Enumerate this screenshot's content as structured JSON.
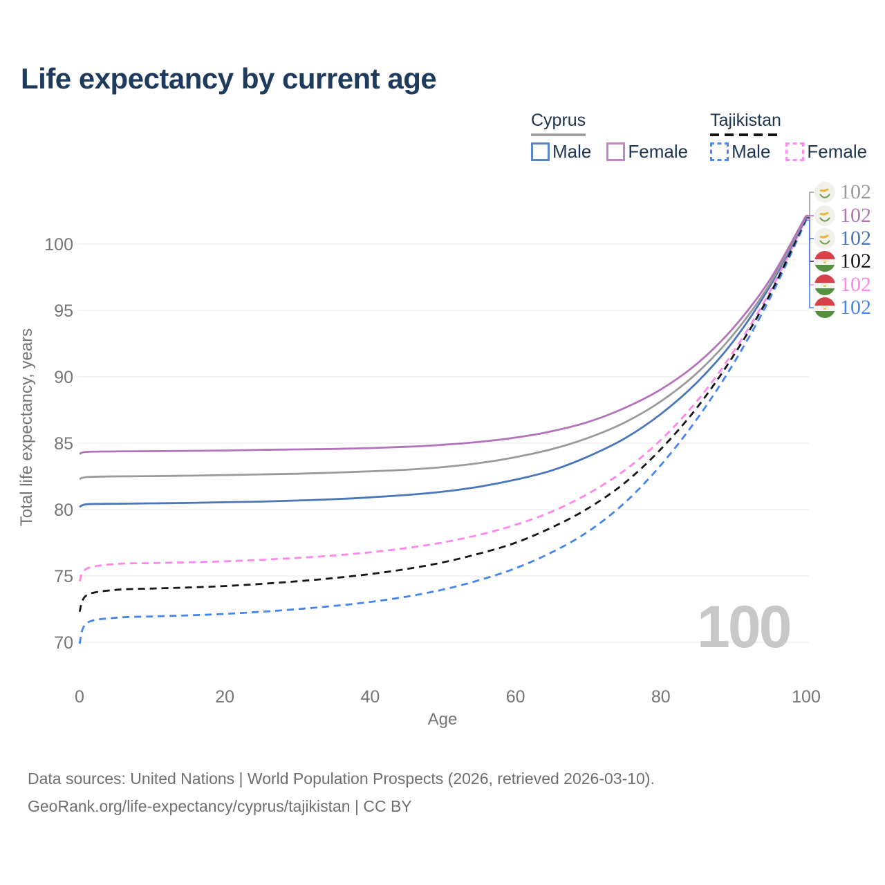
{
  "title": "Life expectancy by current age",
  "legend": {
    "groups": [
      {
        "label": "Cyprus",
        "line_style": "solid",
        "items": [
          {
            "label": "Male",
            "color": "#4a76ba"
          },
          {
            "label": "Female",
            "color": "#b273b8"
          }
        ]
      },
      {
        "label": "Tajikistan",
        "line_style": "dashed",
        "items": [
          {
            "label": "Male",
            "color": "#4485f2"
          },
          {
            "label": "Female",
            "color": "#ff86ec"
          }
        ]
      }
    ]
  },
  "chart_data": {
    "type": "line",
    "title": "Life expectancy by current age",
    "xlabel": "Age",
    "ylabel": "Total life expectancy, years",
    "x_ticks": [
      0,
      20,
      40,
      60,
      80,
      100
    ],
    "y_ticks": [
      70,
      75,
      80,
      85,
      90,
      95,
      100
    ],
    "xlim": [
      0,
      100
    ],
    "ylim": [
      67,
      104.3
    ],
    "grid": "horizontal",
    "legend_position": "top-right",
    "x": [
      0,
      1,
      5,
      10,
      15,
      20,
      25,
      30,
      35,
      40,
      45,
      50,
      55,
      60,
      65,
      70,
      75,
      80,
      85,
      90,
      95,
      100
    ],
    "series": [
      {
        "id": "cyprus-both",
        "name": "Cyprus Both sexes",
        "color": "#9a9a9a",
        "dashed": false,
        "values": [
          82.3,
          82.45,
          82.5,
          82.52,
          82.55,
          82.6,
          82.65,
          82.7,
          82.78,
          82.88,
          83.0,
          83.2,
          83.5,
          83.95,
          84.55,
          85.4,
          86.55,
          88.15,
          90.3,
          93.2,
          97.0,
          102.1
        ],
        "end_label": "102"
      },
      {
        "id": "cyprus-female",
        "name": "Cyprus Female",
        "color": "#b273b8",
        "dashed": false,
        "values": [
          84.2,
          84.35,
          84.38,
          84.4,
          84.42,
          84.45,
          84.5,
          84.53,
          84.57,
          84.63,
          84.73,
          84.88,
          85.1,
          85.42,
          85.9,
          86.6,
          87.65,
          89.05,
          91.0,
          93.7,
          97.3,
          102.15
        ],
        "end_label": "102"
      },
      {
        "id": "cyprus-male",
        "name": "Cyprus Male",
        "color": "#4a76ba",
        "dashed": false,
        "values": [
          80.2,
          80.4,
          80.44,
          80.47,
          80.5,
          80.55,
          80.6,
          80.68,
          80.78,
          80.92,
          81.1,
          81.35,
          81.72,
          82.25,
          82.95,
          84.0,
          85.35,
          87.2,
          89.6,
          92.7,
          96.8,
          102.0
        ],
        "end_label": "102"
      },
      {
        "id": "tajikistan-both",
        "name": "Tajikistan Both sexes",
        "color": "#161616",
        "dashed": true,
        "values": [
          72.3,
          73.55,
          73.95,
          74.05,
          74.13,
          74.24,
          74.4,
          74.6,
          74.84,
          75.14,
          75.52,
          76.02,
          76.68,
          77.5,
          78.65,
          80.1,
          82.0,
          84.55,
          87.7,
          91.6,
          96.2,
          101.95
        ],
        "end_label": "102"
      },
      {
        "id": "tajikistan-female",
        "name": "Tajikistan Female",
        "color": "#ff86ec",
        "dashed": true,
        "values": [
          74.6,
          75.55,
          75.9,
          75.97,
          76.03,
          76.1,
          76.22,
          76.36,
          76.54,
          76.78,
          77.1,
          77.52,
          78.1,
          78.85,
          79.85,
          81.2,
          82.95,
          85.25,
          88.2,
          91.9,
          96.4,
          101.9
        ],
        "end_label": "102"
      },
      {
        "id": "tajikistan-male",
        "name": "Tajikistan Male",
        "color": "#4485f2",
        "dashed": true,
        "values": [
          69.9,
          71.45,
          71.85,
          71.95,
          72.03,
          72.14,
          72.3,
          72.5,
          72.74,
          73.04,
          73.44,
          73.97,
          74.68,
          75.58,
          76.78,
          78.35,
          80.5,
          83.35,
          86.85,
          91.0,
          95.9,
          101.8
        ],
        "end_label": "102"
      }
    ]
  },
  "end_labels": [
    {
      "value": "102",
      "color": "#9a9a9a",
      "flag": "cyprus",
      "series": "cyprus-both"
    },
    {
      "value": "102",
      "color": "#b273b8",
      "flag": "cyprus",
      "series": "cyprus-female"
    },
    {
      "value": "102",
      "color": "#4a76ba",
      "flag": "cyprus",
      "series": "cyprus-male"
    },
    {
      "value": "102",
      "color": "#161616",
      "flag": "tajikistan",
      "series": "tajikistan-both"
    },
    {
      "value": "102",
      "color": "#ff86ec",
      "flag": "tajikistan",
      "series": "tajikistan-female"
    },
    {
      "value": "102",
      "color": "#4485f2",
      "flag": "tajikistan",
      "series": "tajikistan-male"
    }
  ],
  "watermark": "100",
  "colors": {
    "title": "#1e3a5c",
    "axis_text": "#757575",
    "gridline": "#e7e7e7",
    "footer_text": "#6e6e6e",
    "watermark": "#c8c8c8"
  },
  "footer": {
    "line1": "Data sources: United Nations | World Population Prospects (2026, retrieved 2026-03-10).",
    "line2": "GeoRank.org/life-expectancy/cyprus/tajikistan | CC BY"
  }
}
